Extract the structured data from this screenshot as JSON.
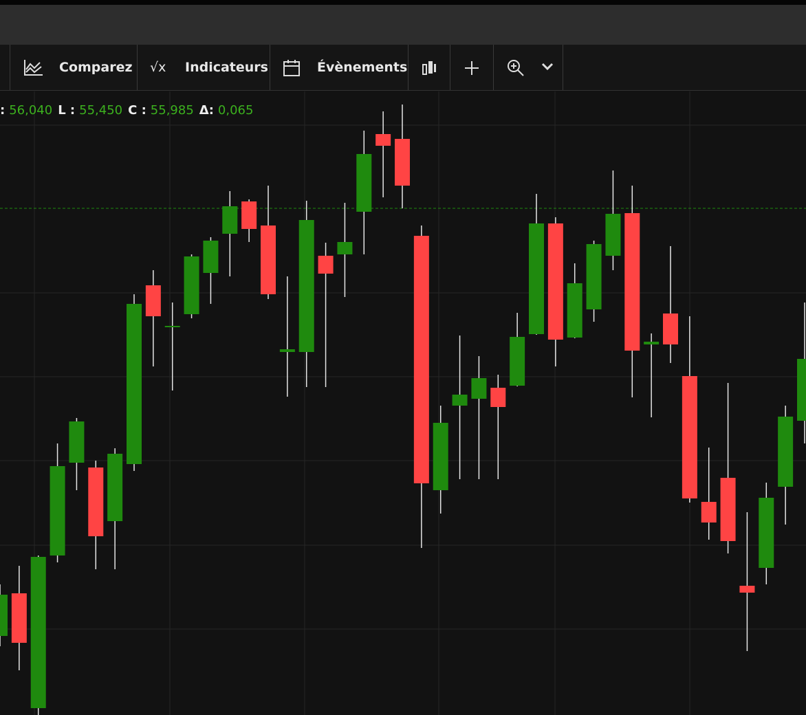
{
  "toolbar": {
    "compare": "Comparez",
    "indicators": "Indicateurs",
    "events": "Évènements"
  },
  "ohlc": [
    {
      "label": ":",
      "value": "56,040"
    },
    {
      "label": "L :",
      "value": "55,450"
    },
    {
      "label": "C :",
      "value": "55,985"
    },
    {
      "label": "Δ:",
      "value": "0,065"
    }
  ],
  "chart_data": {
    "type": "candlestick",
    "categories": [
      null,
      null,
      null,
      null,
      null,
      null,
      null,
      null,
      null,
      null,
      null,
      null,
      null,
      null,
      null,
      null,
      null,
      null,
      null,
      null,
      null,
      null,
      null,
      null,
      null,
      null,
      null,
      null,
      null,
      null,
      null,
      null,
      null,
      null,
      null,
      null,
      null,
      null,
      null,
      null,
      null,
      null,
      null
    ],
    "open": [
      54.75,
      54.874,
      54.54,
      54.984,
      55.254,
      55.24,
      55.084,
      55.25,
      55.77,
      55.648,
      55.686,
      55.806,
      55.92,
      56.014,
      55.944,
      55.576,
      55.576,
      55.856,
      55.86,
      55.984,
      56.21,
      56.196,
      55.914,
      55.174,
      55.42,
      55.44,
      55.472,
      55.478,
      55.628,
      55.95,
      55.618,
      55.7,
      55.856,
      55.98,
      55.598,
      55.688,
      55.506,
      55.14,
      55.21,
      54.896,
      54.948,
      55.184,
      55.376
    ],
    "high": [
      54.9,
      54.954,
      54.984,
      55.31,
      55.384,
      55.26,
      55.296,
      55.744,
      55.814,
      55.72,
      55.86,
      55.91,
      56.044,
      56.02,
      56.06,
      55.796,
      56.016,
      55.894,
      56.01,
      56.22,
      56.276,
      56.296,
      55.944,
      55.42,
      55.624,
      55.564,
      55.51,
      55.69,
      56.036,
      55.968,
      55.834,
      55.9,
      56.104,
      56.06,
      55.63,
      55.884,
      55.68,
      55.298,
      55.486,
      55.11,
      55.196,
      55.42,
      55.72
    ],
    "low": [
      54.72,
      54.65,
      54.52,
      54.964,
      55.174,
      54.944,
      54.944,
      55.23,
      55.534,
      55.464,
      55.674,
      55.716,
      55.796,
      55.896,
      55.73,
      55.446,
      55.474,
      55.474,
      55.736,
      55.86,
      56.026,
      55.994,
      55.006,
      55.106,
      55.206,
      55.206,
      55.206,
      55.476,
      55.626,
      55.534,
      55.616,
      55.664,
      55.814,
      55.444,
      55.386,
      55.544,
      55.138,
      55.03,
      54.99,
      54.706,
      54.9,
      55.074,
      55.31
    ],
    "close": [
      54.87,
      54.73,
      54.98,
      55.244,
      55.374,
      55.04,
      55.28,
      55.716,
      55.68,
      55.652,
      55.854,
      55.9,
      56.0,
      55.934,
      55.744,
      55.584,
      55.96,
      55.804,
      55.896,
      56.152,
      56.176,
      56.06,
      55.194,
      55.37,
      55.452,
      55.5,
      55.416,
      55.62,
      55.95,
      55.612,
      55.776,
      55.89,
      55.978,
      55.58,
      55.606,
      55.598,
      55.15,
      55.08,
      55.026,
      54.876,
      55.152,
      55.388,
      55.556
    ],
    "up_color": "#1f8a0e",
    "down_color": "#ff4444",
    "wick_color": "#e6e6e6",
    "ylim": [
      54.52,
      56.6
    ],
    "price_line": 55.994,
    "price_line_color": "#1f8a0e",
    "grid": true
  }
}
